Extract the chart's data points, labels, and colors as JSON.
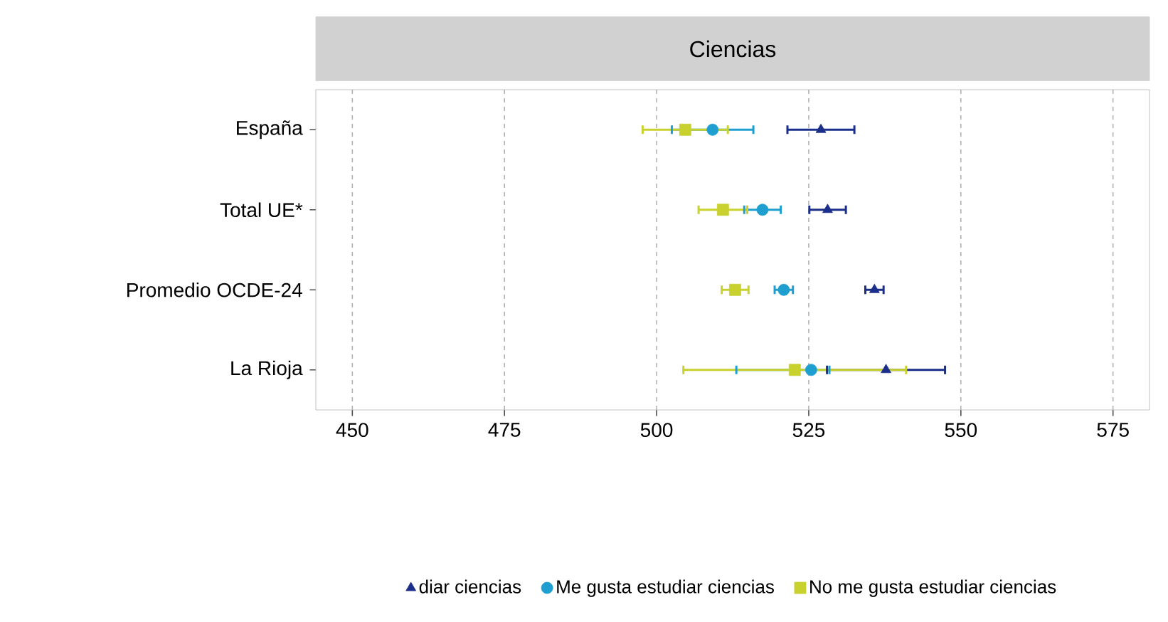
{
  "chart_data": {
    "type": "scatter",
    "orientation": "horizontal",
    "title": "Ciencias",
    "categories": [
      "España",
      "Total UE*",
      "Promedio OCDE-24",
      "La Rioja"
    ],
    "series": [
      {
        "name": "diar ciencias",
        "color": "#1b2f8a",
        "marker": "triangle",
        "values": [
          527,
          528.1,
          535.8,
          537.7
        ],
        "errors": [
          5.5,
          3,
          1.5,
          9.7
        ]
      },
      {
        "name": "Me gusta estudiar ciencias",
        "color": "#1f9fd0",
        "marker": "circle",
        "values": [
          509.2,
          517.4,
          520.9,
          525.4
        ],
        "errors": [
          6.7,
          3,
          1.5,
          [
            513.1,
            528.4
          ]
        ]
      },
      {
        "name": "No me gusta estudiar ciencias",
        "color": "#c8d12e",
        "marker": "square",
        "values": [
          504.7,
          510.9,
          512.9,
          522.7
        ],
        "errors": [
          7,
          4,
          2.2,
          18.3
        ]
      }
    ],
    "xlim": [
      444,
      581
    ],
    "xticks": [
      450,
      475,
      500,
      525,
      550,
      575
    ],
    "grid": "x",
    "legend": "bottom"
  }
}
